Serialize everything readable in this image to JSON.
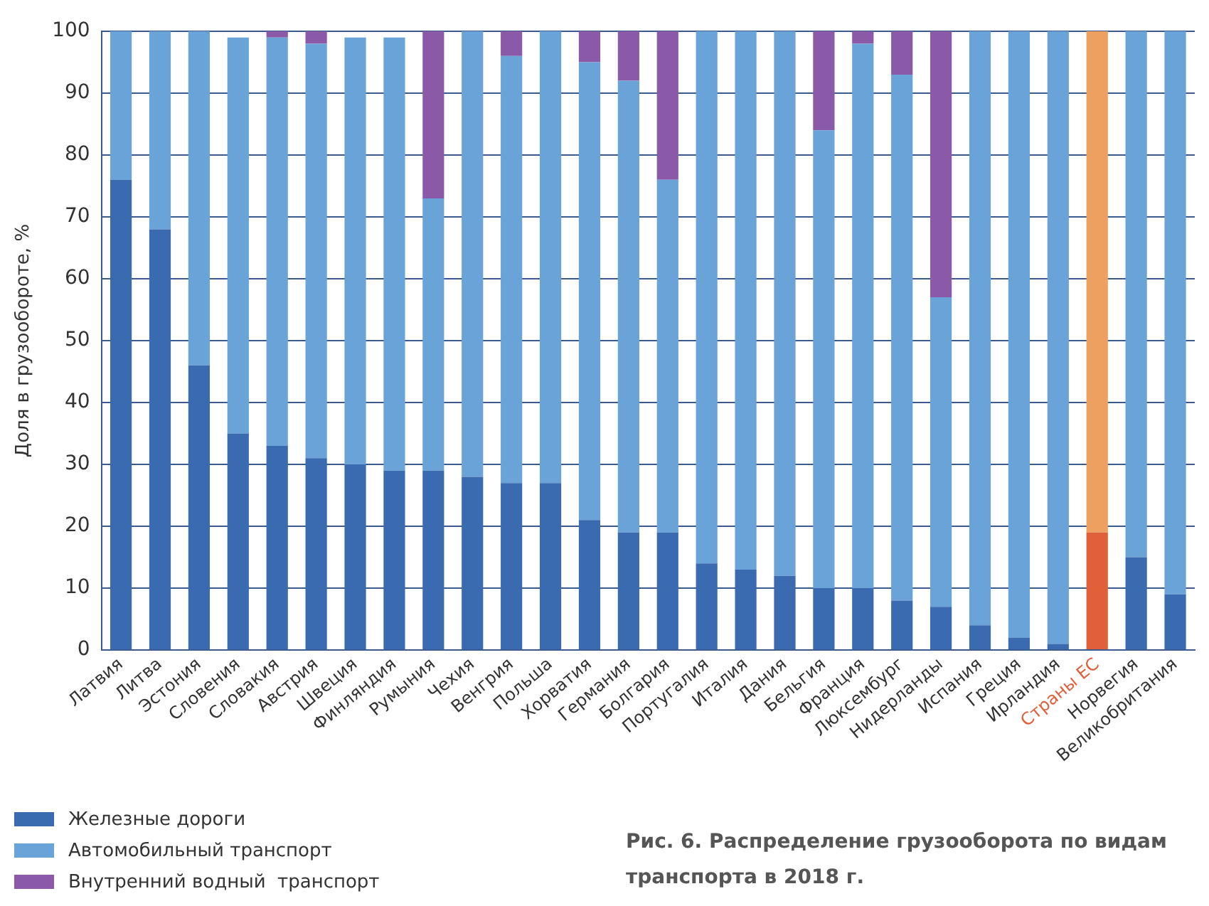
{
  "chart_data": {
    "type": "bar",
    "stacked": true,
    "title": "Рис. 6. Распределение грузооборота по видам транспорта в 2018 г.",
    "ylabel": "Доля в грузообороте, %",
    "categories": [
      "Латвия",
      "Литва",
      "Эстония",
      "Словения",
      "Словакия",
      "Австрия",
      "Швеция",
      "Финляндия",
      "Румыния",
      "Чехия",
      "Венгрия",
      "Польша",
      "Хорватия",
      "Германия",
      "Болгария",
      "Португалия",
      "Италия",
      "Дания",
      "Бельгия",
      "Франция",
      "Люксембург",
      "Нидерланды",
      "Испания",
      "Греция",
      "Ирландия",
      "Страны ЕС",
      "Норвегия",
      "Великобритания"
    ],
    "series": [
      {
        "name": "Железные дороги",
        "color": "#3a6bb0",
        "colors": [
          "#3a6bb0",
          "#3a6bb0",
          "#3a6bb0",
          "#3a6bb0",
          "#3a6bb0",
          "#3a6bb0",
          "#3a6bb0",
          "#3a6bb0",
          "#3a6bb0",
          "#3a6bb0",
          "#3a6bb0",
          "#3a6bb0",
          "#3a6bb0",
          "#3a6bb0",
          "#3a6bb0",
          "#3a6bb0",
          "#3a6bb0",
          "#3a6bb0",
          "#3a6bb0",
          "#3a6bb0",
          "#3a6bb0",
          "#3a6bb0",
          "#3a6bb0",
          "#3a6bb0",
          "#3a6bb0",
          "#e0603a",
          "#3a6bb0",
          "#3a6bb0"
        ],
        "values": [
          76,
          68,
          46,
          35,
          33,
          31,
          30,
          29,
          29,
          28,
          27,
          27,
          21,
          19,
          19,
          14,
          13,
          12,
          10,
          10,
          8,
          7,
          4,
          2,
          1,
          19,
          15,
          9
        ]
      },
      {
        "name": "Автомобильный транспорт",
        "color": "#6aa3d8",
        "colors": [
          "#6aa3d8",
          "#6aa3d8",
          "#6aa3d8",
          "#6aa3d8",
          "#6aa3d8",
          "#6aa3d8",
          "#6aa3d8",
          "#6aa3d8",
          "#6aa3d8",
          "#6aa3d8",
          "#6aa3d8",
          "#6aa3d8",
          "#6aa3d8",
          "#6aa3d8",
          "#6aa3d8",
          "#6aa3d8",
          "#6aa3d8",
          "#6aa3d8",
          "#6aa3d8",
          "#6aa3d8",
          "#6aa3d8",
          "#6aa3d8",
          "#6aa3d8",
          "#6aa3d8",
          "#6aa3d8",
          "#eda060",
          "#6aa3d8",
          "#6aa3d8"
        ],
        "values": [
          24,
          32,
          54,
          64,
          66,
          67,
          69,
          70,
          44,
          72,
          69,
          73,
          74,
          73,
          57,
          86,
          87,
          88,
          74,
          88,
          85,
          50,
          96,
          98,
          99,
          81,
          85,
          91
        ]
      },
      {
        "name": "Внутренний водный  транспорт",
        "color": "#8a5aa8",
        "values": [
          0,
          0,
          0,
          0,
          1,
          2,
          0,
          0,
          27,
          0,
          4,
          0,
          5,
          8,
          24,
          0,
          0,
          0,
          16,
          2,
          7,
          43,
          0,
          0,
          0,
          0,
          0,
          0
        ]
      }
    ],
    "ylim": [
      0,
      100
    ],
    "yticks": [
      0,
      10,
      20,
      30,
      40,
      50,
      60,
      70,
      80,
      90,
      100
    ],
    "grid": "y",
    "legend": "bottom left"
  }
}
